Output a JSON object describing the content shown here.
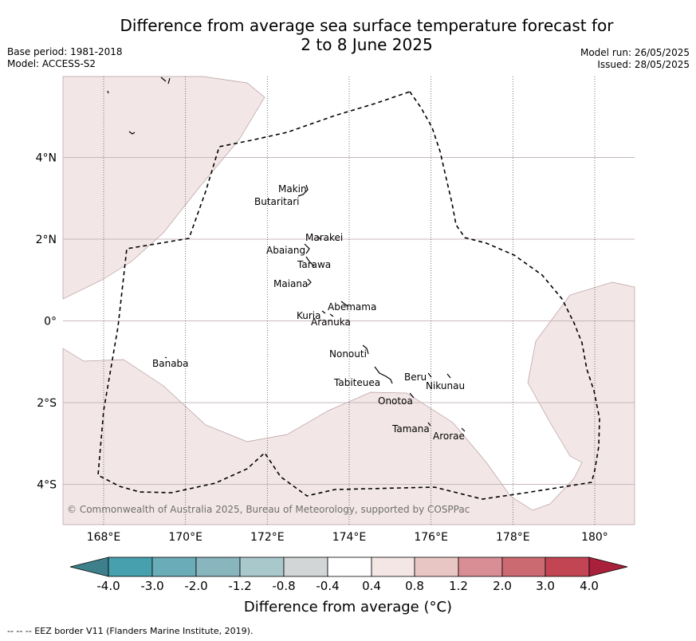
{
  "title_line1": "Difference from average sea surface temperature forecast for",
  "title_line2": "2 to 8 June 2025",
  "base_period": "Base period: 1981-2018",
  "model": "Model: ACCESS-S2",
  "model_run": "Model run: 26/05/2025",
  "issued": "Issued: 28/05/2025",
  "map": {
    "lon_range": [
      167,
      181
    ],
    "lat_range": [
      -5,
      6
    ],
    "lon_ticks": [
      {
        "value": 168,
        "label": "168°E"
      },
      {
        "value": 170,
        "label": "170°E"
      },
      {
        "value": 172,
        "label": "172°E"
      },
      {
        "value": 174,
        "label": "174°E"
      },
      {
        "value": 176,
        "label": "176°E"
      },
      {
        "value": 178,
        "label": "178°E"
      },
      {
        "value": 180,
        "label": "180°"
      }
    ],
    "lat_ticks": [
      {
        "value": 4,
        "label": "4°N"
      },
      {
        "value": 2,
        "label": "2°N"
      },
      {
        "value": 0,
        "label": "0°"
      },
      {
        "value": -2,
        "label": "2°S"
      },
      {
        "value": -4,
        "label": "4°S"
      }
    ],
    "places": [
      {
        "name": "Makin",
        "lon": 172.9,
        "lat": 3.1
      },
      {
        "name": "Butaritari",
        "lon": 172.8,
        "lat": 3.0
      },
      {
        "name": "Marakei",
        "lon": 173.3,
        "lat": 2.0
      },
      {
        "name": "Abaiang",
        "lon": 172.9,
        "lat": 1.8
      },
      {
        "name": "Tarawa",
        "lon": 173.0,
        "lat": 1.4
      },
      {
        "name": "Maiana",
        "lon": 173.0,
        "lat": 0.9
      },
      {
        "name": "Abemama",
        "lon": 173.9,
        "lat": 0.4
      },
      {
        "name": "Kuria",
        "lon": 173.4,
        "lat": 0.2
      },
      {
        "name": "Aranuka",
        "lon": 173.6,
        "lat": 0.2
      },
      {
        "name": "Nonouti",
        "lon": 174.4,
        "lat": -0.7
      },
      {
        "name": "Banaba",
        "lon": 169.5,
        "lat": -0.9
      },
      {
        "name": "Tabiteuea",
        "lon": 174.8,
        "lat": -1.4
      },
      {
        "name": "Beru",
        "lon": 176.0,
        "lat": -1.3
      },
      {
        "name": "Nikunau",
        "lon": 176.5,
        "lat": -1.4
      },
      {
        "name": "Onotoa",
        "lon": 175.6,
        "lat": -1.8
      },
      {
        "name": "Tamana",
        "lon": 176.0,
        "lat": -2.5
      },
      {
        "name": "Arorae",
        "lon": 176.8,
        "lat": -2.6
      }
    ],
    "colors": {
      "warm_region": "#f3e6e6",
      "grid": "#c8b8bc",
      "meridian": "#555555",
      "eez_border": "#000000"
    },
    "legend_region_value": "0.4 to 0.8"
  },
  "copyright": "© Commonwealth of Australia 2025, Bureau of Meteorology, supported by COSPPac",
  "colorbar": {
    "title": "Difference from average (°C)",
    "ticks": [
      "-4.0",
      "-3.0",
      "-2.0",
      "-1.2",
      "-0.8",
      "-0.4",
      "0.4",
      "0.8",
      "1.2",
      "2.0",
      "3.0",
      "4.0"
    ],
    "colors": [
      "#3e7f8c",
      "#47a0ae",
      "#6aacb8",
      "#89b5bf",
      "#a9c8cc",
      "#d3d6d6",
      "#ffffff",
      "#f4e6e5",
      "#e8c6c3",
      "#d88e94",
      "#cc6a72",
      "#c24554",
      "#a8203a"
    ]
  },
  "footer": "--  --  -- EEZ border V11 (Flanders Marine Institute, 2019)."
}
